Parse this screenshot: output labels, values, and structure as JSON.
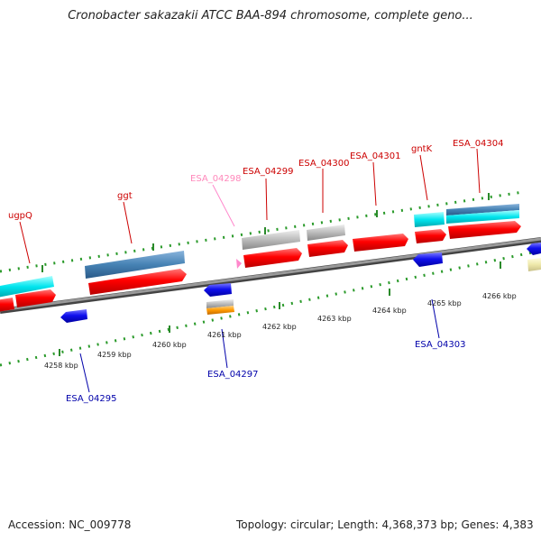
{
  "title": "Cronobacter sakazakii ATCC BAA-894 chromosome, complete geno...",
  "footer": {
    "accession": "Accession: NC_009778",
    "summary": "Topology: circular; Length: 4,368,373 bp; Genes: 4,383"
  },
  "ticks": [
    "4258 kbp",
    "4259 kbp",
    "4260 kbp",
    "4261 kbp",
    "4262 kbp",
    "4263 kbp",
    "4264 kbp",
    "4265 kbp",
    "4266 kbp"
  ],
  "gene_labels_top": [
    "ugpQ",
    "ggt",
    "ESA_04298",
    "ESA_04299",
    "ESA_04300",
    "ESA_04301",
    "gntK",
    "ESA_04304"
  ],
  "gene_labels_bottom": [
    "ESA_04295",
    "ESA_04297",
    "ESA_04303"
  ],
  "colors": {
    "forward_cds": "#ff0000",
    "reverse_cds": "#0000ee",
    "label_top": "#cc0000",
    "label_pink": "#ff88bb",
    "label_bottom": "#0000aa",
    "cyan": "#00e5ee",
    "steelblue": "#4682b4",
    "grey": "#bbbbbb",
    "orange": "#ff9900",
    "khaki": "#eee8aa",
    "tick_green": "#228b22"
  }
}
